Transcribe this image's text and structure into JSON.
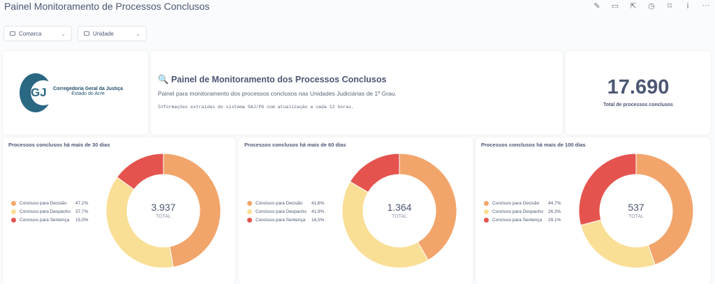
{
  "header": {
    "title": "Painel Monitoramento de Processos Conclusos",
    "icons": [
      "pencil-icon",
      "subscription-icon",
      "share-icon",
      "clock-icon",
      "bookmark-icon",
      "info-icon",
      "more-icon"
    ]
  },
  "filters": [
    {
      "label": "Comarca"
    },
    {
      "label": "Unidade"
    }
  ],
  "logo": {
    "letters": "GJ",
    "line1": "Corregedoria Geral da Justiça",
    "line2": "Estado do Acre"
  },
  "intro": {
    "icon": "🔍",
    "title": "Painel de Monitoramento dos Processos Conclusos",
    "subtitle": "Painel para monitoramento dos processos conclusos nas Unidades Judiciárias de 1º Grau.",
    "note": "Informações extraídas do sistema SAJ/PG com atualização a cada 12 horas."
  },
  "kpi": {
    "value": "17.690",
    "label": "Total de processos conclusos"
  },
  "colors": {
    "decisao": "#f2a56b",
    "despacho": "#f9de95",
    "sentenca": "#e5534f"
  },
  "chart_data": [
    {
      "type": "pie",
      "title": "Processos conclusos há mais de 30 dias",
      "total": "3.937",
      "total_label": "TOTAL",
      "categories": [
        "Concluso para Decisão",
        "Concluso para Despacho",
        "Concluso para Sentença"
      ],
      "values": [
        47.2,
        37.7,
        15.0
      ],
      "labels": [
        "47,2%",
        "37,7%",
        "15,0%"
      ]
    },
    {
      "type": "pie",
      "title": "Processos conclusos há mais de 60 dias",
      "total": "1.364",
      "total_label": "TOTAL",
      "categories": [
        "Concluso para Decisão",
        "Concluso para Despacho",
        "Concluso para Sentença"
      ],
      "values": [
        41.6,
        41.9,
        16.5
      ],
      "labels": [
        "41,6%",
        "41,9%",
        "16,5%"
      ]
    },
    {
      "type": "pie",
      "title": "Processos conclusos há mais de 100 dias",
      "total": "537",
      "total_label": "TOTAL",
      "categories": [
        "Concluso para Decisão",
        "Concluso para Despacho",
        "Concluso para Sentença"
      ],
      "values": [
        44.7,
        26.3,
        29.1
      ],
      "labels": [
        "44,7%",
        "26,3%",
        "29,1%"
      ]
    }
  ]
}
